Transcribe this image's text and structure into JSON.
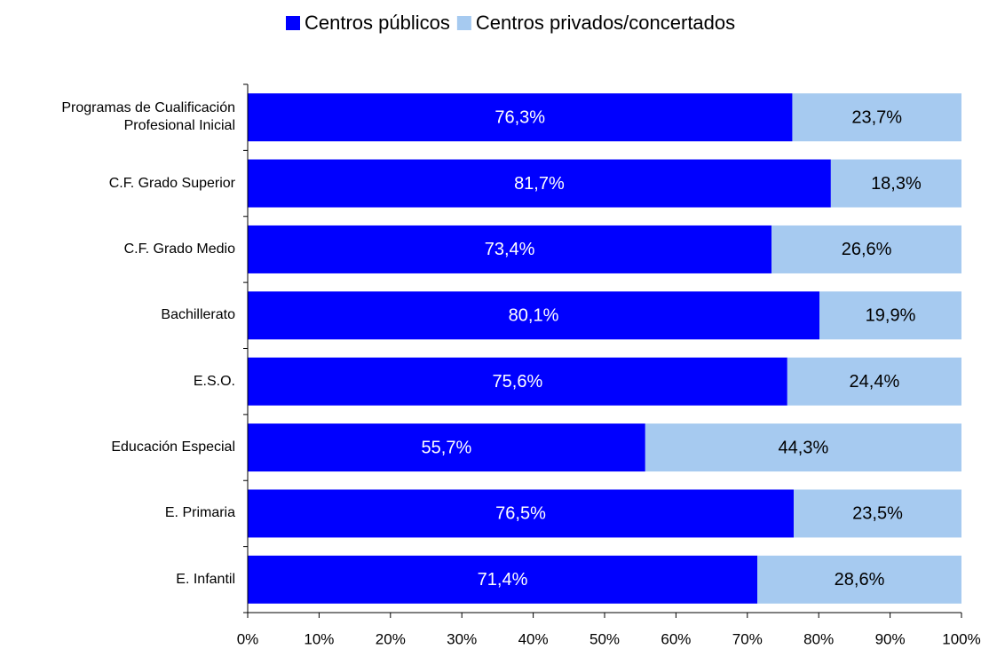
{
  "chart_data": {
    "type": "stacked_barh",
    "categories": [
      "Programas de Cualificación Profesional Inicial",
      "C.F. Grado Superior",
      "C.F. Grado Medio",
      "Bachillerato",
      "E.S.O.",
      "Educación Especial",
      "E. Primaria",
      "E. Infantil"
    ],
    "series": [
      {
        "name": "Centros públicos",
        "color": "#0000ff",
        "values": [
          76.3,
          81.7,
          73.4,
          80.1,
          75.6,
          55.7,
          76.5,
          71.4
        ],
        "value_labels": [
          "76,3%",
          "81,7%",
          "73,4%",
          "80,1%",
          "75,6%",
          "55,7%",
          "76,5%",
          "71,4%"
        ]
      },
      {
        "name": "Centros privados/concertados",
        "color": "#a6caf0",
        "values": [
          23.7,
          18.3,
          26.6,
          19.9,
          24.4,
          44.3,
          23.5,
          28.6
        ],
        "value_labels": [
          "23,7%",
          "18,3%",
          "26,6%",
          "19,9%",
          "24,4%",
          "44,3%",
          "23,5%",
          "28,6%"
        ]
      }
    ],
    "xlim": [
      0,
      100
    ],
    "xticks": [
      {
        "value": 0,
        "label": "0%"
      },
      {
        "value": 10,
        "label": "10%"
      },
      {
        "value": 20,
        "label": "20%"
      },
      {
        "value": 30,
        "label": "30%"
      },
      {
        "value": 40,
        "label": "40%"
      },
      {
        "value": 50,
        "label": "50%"
      },
      {
        "value": 60,
        "label": "60%"
      },
      {
        "value": 70,
        "label": "70%"
      },
      {
        "value": 80,
        "label": "80%"
      },
      {
        "value": 90,
        "label": "90%"
      },
      {
        "value": 100,
        "label": "100%"
      }
    ],
    "legend": "top"
  }
}
